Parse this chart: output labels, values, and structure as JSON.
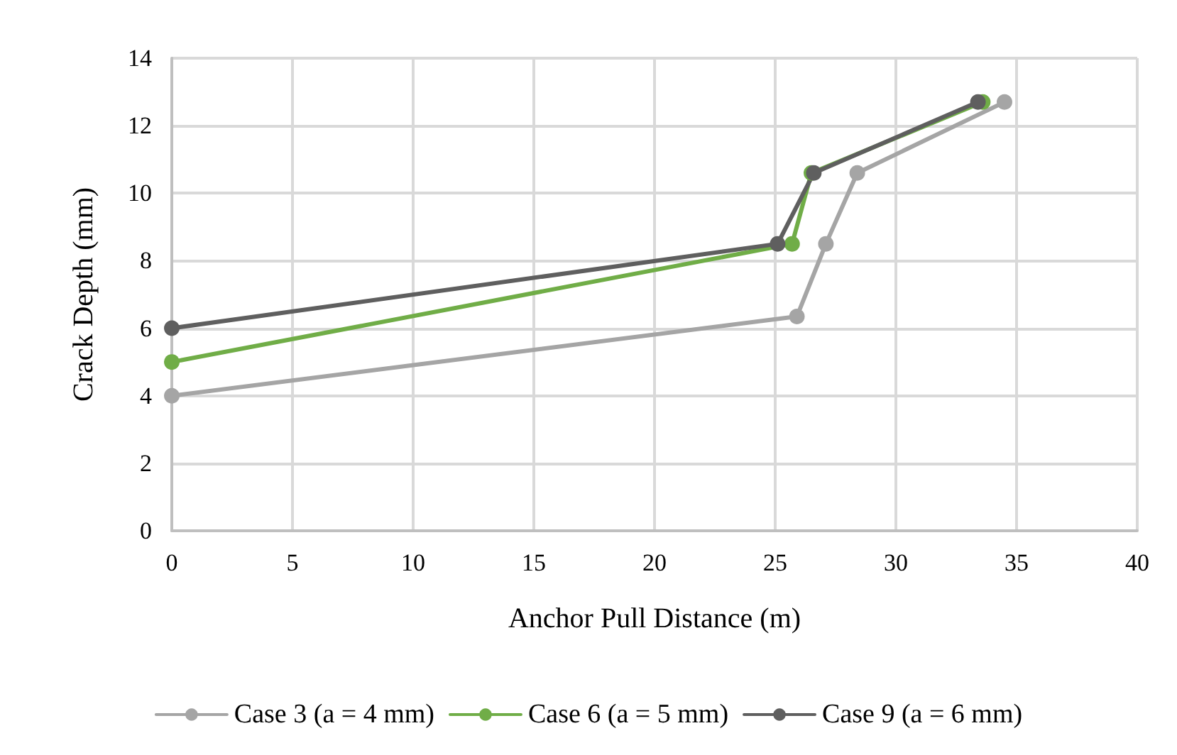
{
  "chart_data": {
    "type": "line",
    "xlabel": "Anchor Pull Distance (m)",
    "ylabel": "Crack Depth (mm)",
    "xlim": [
      0,
      40
    ],
    "xticks": [
      0,
      5,
      10,
      15,
      20,
      25,
      30,
      35,
      40
    ],
    "ylim": [
      0,
      14
    ],
    "yticks": [
      0,
      2,
      4,
      6,
      8,
      10,
      12,
      14
    ],
    "grid": true,
    "legend": "bottom",
    "marker": "circle",
    "line_style": "solid",
    "series": [
      {
        "name": "Case 3 (a = 4 mm)",
        "color": "#a5a5a5",
        "x": [
          0,
          25.9,
          27.1,
          28.4,
          34.5
        ],
        "values": [
          4,
          6.35,
          8.5,
          10.6,
          12.7
        ]
      },
      {
        "name": "Case 6 (a = 5 mm)",
        "color": "#70ad47",
        "x": [
          0,
          25.7,
          26.5,
          33.6
        ],
        "values": [
          5,
          8.5,
          10.6,
          12.7
        ]
      },
      {
        "name": "Case 9 (a = 6 mm)",
        "color": "#5f5f5f",
        "x": [
          0,
          25.1,
          26.6,
          33.4
        ],
        "values": [
          6,
          8.5,
          10.6,
          12.7
        ]
      }
    ]
  }
}
